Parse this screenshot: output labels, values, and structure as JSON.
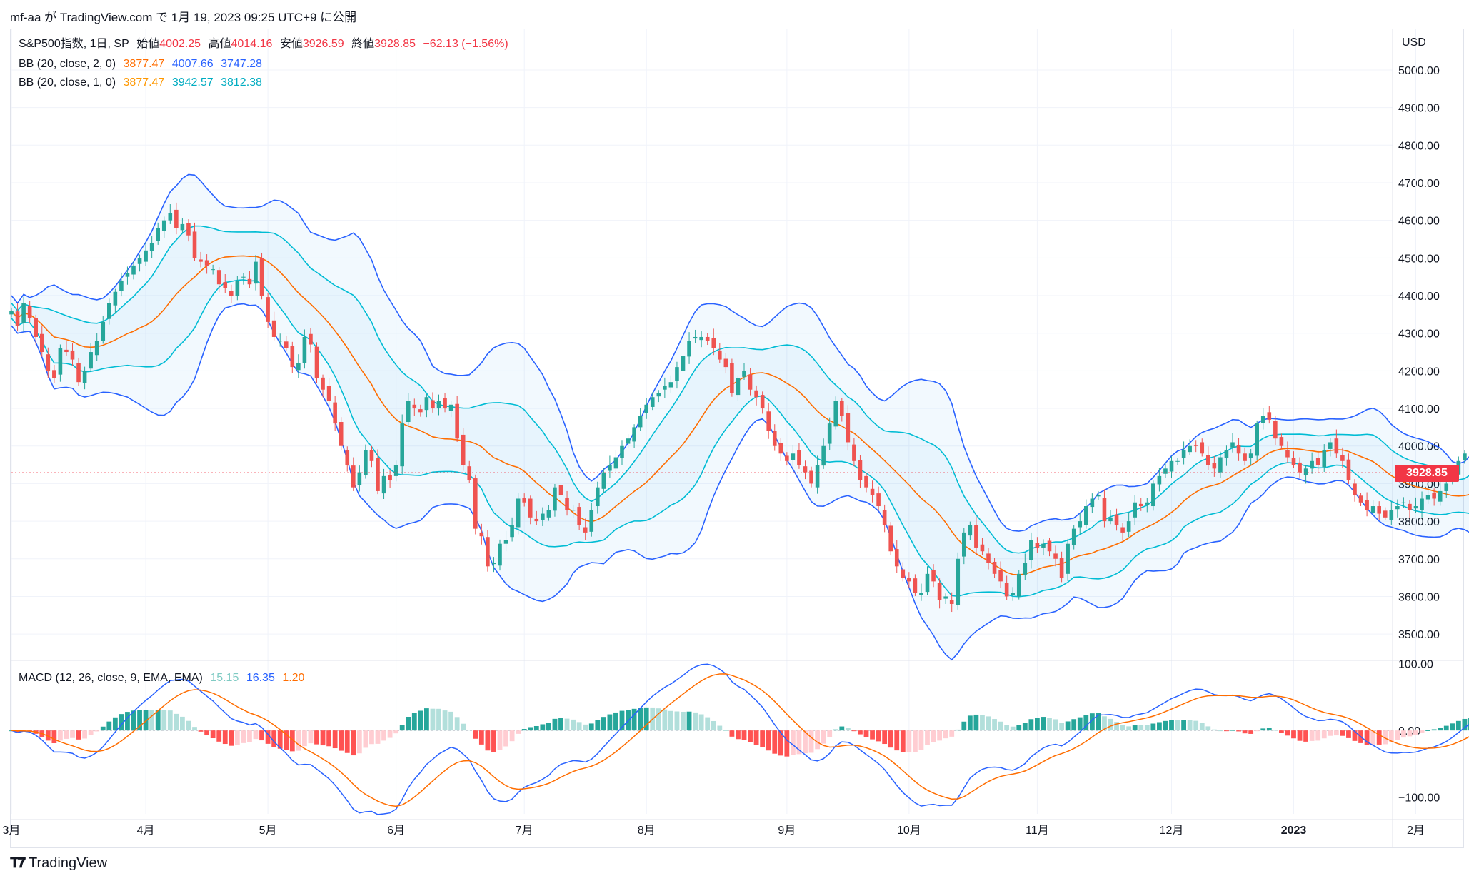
{
  "header": {
    "text": "mf-aa が TradingView.com で 1月 19, 2023 09:25 UTC+9 に公開"
  },
  "legend": {
    "main": {
      "title": "S&P500指数, 1日, SP",
      "open_label": "始値",
      "open": "4002.25",
      "high_label": "高値",
      "high": "4014.16",
      "low_label": "安値",
      "low": "3926.59",
      "close_label": "終値",
      "close": "3928.85",
      "change": "−62.13 (−1.56%)"
    },
    "bb2": {
      "title": "BB (20, close, 2, 0)",
      "basis": "3877.47",
      "upper": "4007.66",
      "lower": "3747.28"
    },
    "bb1": {
      "title": "BB (20, close, 1, 0)",
      "basis": "3877.47",
      "upper": "3942.57",
      "lower": "3812.38"
    },
    "macd": {
      "title": "MACD (12, 26, close, 9, EMA, EMA)",
      "hist": "15.15",
      "macd": "16.35",
      "signal": "1.20"
    }
  },
  "currency": "USD",
  "last_price": "3928.85",
  "footer": {
    "brand": "TradingView"
  },
  "colors": {
    "up": "#26a69a",
    "down": "#ef5350",
    "bb_outer": "#2962ff",
    "bb_inner": "#00bcd4",
    "basis": "#ff6d00",
    "macd_line": "#2962ff",
    "signal_line": "#ff6d00",
    "hist_up": "#26a69a",
    "hist_up_light": "#b2dfdb",
    "hist_down": "#ff5252",
    "hist_down_light": "#ffcdd2"
  },
  "chart_data": [
    {
      "type": "candlestick",
      "panel": "price",
      "ylim": [
        3430,
        5110
      ],
      "yticks": [
        3500,
        3600,
        3700,
        3800,
        3900,
        4000,
        4100,
        4200,
        4300,
        4400,
        4500,
        4600,
        4700,
        4800,
        4900,
        5000
      ],
      "ytick_labels": [
        "3500.00",
        "3600.00",
        "3700.00",
        "3800.00",
        "3900.00",
        "4000.00",
        "4100.00",
        "4200.00",
        "4300.00",
        "4400.00",
        "4500.00",
        "4600.00",
        "4700.00",
        "4800.00",
        "4900.00",
        "5000.00"
      ],
      "months": [
        {
          "label": "3月",
          "day": 0
        },
        {
          "label": "4月",
          "day": 22
        },
        {
          "label": "5月",
          "day": 42
        },
        {
          "label": "6月",
          "day": 63
        },
        {
          "label": "7月",
          "day": 84
        },
        {
          "label": "8月",
          "day": 104
        },
        {
          "label": "9月",
          "day": 127
        },
        {
          "label": "10月",
          "day": 147
        },
        {
          "label": "11月",
          "day": 168
        },
        {
          "label": "12月",
          "day": 190
        },
        {
          "label": "2023",
          "day": 210
        },
        {
          "label": "2月",
          "day": 230
        }
      ],
      "closes": [
        4360,
        4320,
        4380,
        4340,
        4290,
        4250,
        4200,
        4180,
        4260,
        4250,
        4230,
        4170,
        4200,
        4250,
        4280,
        4330,
        4380,
        4410,
        4440,
        4460,
        4480,
        4500,
        4520,
        4540,
        4580,
        4600,
        4620,
        4580,
        4590,
        4560,
        4500,
        4490,
        4480,
        4470,
        4430,
        4420,
        4400,
        4440,
        4450,
        4430,
        4490,
        4400,
        4330,
        4290,
        4280,
        4260,
        4210,
        4220,
        4290,
        4270,
        4180,
        4150,
        4120,
        4060,
        4000,
        3950,
        3890,
        3930,
        3990,
        3960,
        3880,
        3920,
        3910,
        3950,
        4060,
        4120,
        4100,
        4090,
        4130,
        4100,
        4120,
        4100,
        4110,
        4020,
        3950,
        3910,
        3780,
        3760,
        3680,
        3690,
        3740,
        3750,
        3790,
        3860,
        3850,
        3810,
        3800,
        3820,
        3830,
        3890,
        3870,
        3830,
        3830,
        3790,
        3770,
        3830,
        3890,
        3930,
        3950,
        3970,
        4000,
        4020,
        4050,
        4080,
        4110,
        4130,
        4140,
        4160,
        4170,
        4210,
        4240,
        4280,
        4290,
        4290,
        4280,
        4260,
        4230,
        4210,
        4140,
        4180,
        4200,
        4150,
        4130,
        4100,
        4040,
        4000,
        3980,
        3960,
        3980,
        3950,
        3930,
        3900,
        3950,
        4000,
        4060,
        4120,
        4080,
        4010,
        3960,
        3910,
        3890,
        3870,
        3840,
        3790,
        3720,
        3680,
        3650,
        3640,
        3610,
        3610,
        3660,
        3640,
        3590,
        3600,
        3580,
        3700,
        3770,
        3790,
        3730,
        3720,
        3690,
        3660,
        3640,
        3600,
        3610,
        3660,
        3690,
        3750,
        3730,
        3740,
        3720,
        3700,
        3650,
        3740,
        3780,
        3800,
        3840,
        3860,
        3870,
        3800,
        3810,
        3790,
        3770,
        3800,
        3850,
        3840,
        3850,
        3900,
        3920,
        3940,
        3960,
        3960,
        3990,
        4000,
        4000,
        3980,
        3950,
        3940,
        3970,
        3990,
        4010,
        3980,
        3960,
        3980,
        4060,
        4080,
        4070,
        4020,
        4000,
        3970,
        3950,
        3930,
        3940,
        3960,
        3950,
        3990,
        4010,
        3980,
        3960,
        3910,
        3870,
        3850,
        3830,
        3840,
        3820,
        3810,
        3830,
        3840,
        3850,
        3830,
        3840,
        3860,
        3870,
        3860,
        3880,
        3900,
        3930,
        3960,
        3980,
        3990,
        4000,
        4002,
        3929
      ]
    },
    {
      "type": "macd",
      "panel": "oscillator",
      "ylim": [
        -125,
        105
      ],
      "yticks": [
        -100,
        0,
        100
      ],
      "ytick_labels": [
        "−100.00",
        "0.00",
        "100.00"
      ]
    }
  ]
}
